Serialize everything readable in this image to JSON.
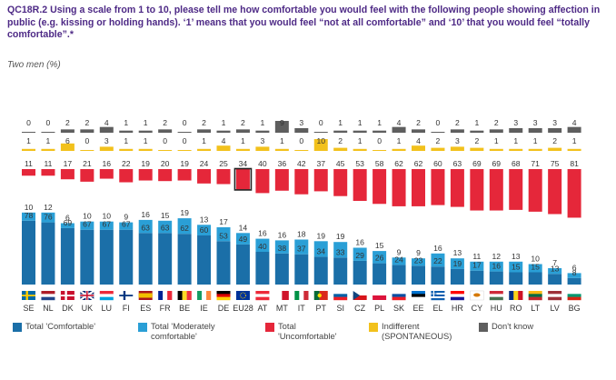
{
  "question": "QC18R.2 Using a scale from 1 to 10, please tell me how comfortable you would feel with the following people showing affection in public (e.g. kissing or holding hands). ‘1’ means that you would feel “not at all comfortable” and ‘10’ that you would feel “totally comfortable”.*",
  "subtitle": "Two men (%)",
  "chart_data": {
    "type": "bar",
    "stacked": true,
    "categories": [
      "SE",
      "NL",
      "DK",
      "UK",
      "LU",
      "FI",
      "ES",
      "FR",
      "BE",
      "IE",
      "DE",
      "EU28",
      "AT",
      "MT",
      "IT",
      "PT",
      "SI",
      "CZ",
      "PL",
      "SK",
      "EE",
      "EL",
      "HR",
      "CY",
      "HU",
      "RO",
      "LT",
      "LV",
      "BG"
    ],
    "highlight": "EU28",
    "series": [
      {
        "name": "Total 'Comfortable'",
        "color": "#1b6fa8",
        "values": [
          78,
          76,
          69,
          67,
          67,
          67,
          63,
          63,
          62,
          60,
          53,
          49,
          40,
          38,
          37,
          34,
          33,
          29,
          26,
          24,
          23,
          22,
          19,
          17,
          16,
          15,
          15,
          13,
          8
        ]
      },
      {
        "name": "Total 'Moderately comfortable'",
        "color": "#2a9fd6",
        "values": [
          10,
          12,
          6,
          10,
          10,
          9,
          16,
          15,
          19,
          13,
          17,
          14,
          16,
          16,
          18,
          19,
          19,
          16,
          15,
          9,
          9,
          16,
          13,
          11,
          12,
          13,
          10,
          7,
          6
        ]
      },
      {
        "name": "Total 'Uncomfortable'",
        "color": "#e5273a",
        "values": [
          11,
          11,
          17,
          21,
          16,
          22,
          19,
          20,
          19,
          24,
          25,
          34,
          40,
          36,
          42,
          37,
          45,
          53,
          58,
          62,
          62,
          60,
          63,
          69,
          69,
          68,
          71,
          75,
          81
        ]
      },
      {
        "name": "Indifferent (SPONTANEOUS)",
        "color": "#f2c11c",
        "values": [
          1,
          1,
          6,
          0,
          3,
          1,
          1,
          0,
          0,
          1,
          4,
          1,
          3,
          1,
          0,
          10,
          2,
          1,
          0,
          1,
          4,
          2,
          3,
          2,
          1,
          1,
          1,
          2,
          1
        ]
      },
      {
        "name": "Don't know",
        "color": "#5e5e5e",
        "values": [
          0,
          0,
          2,
          2,
          4,
          1,
          1,
          2,
          0,
          2,
          1,
          2,
          1,
          9,
          3,
          0,
          1,
          1,
          1,
          4,
          2,
          0,
          2,
          1,
          2,
          3,
          3,
          3,
          4
        ]
      }
    ]
  },
  "legend": [
    {
      "label": "Total 'Comfortable'",
      "color": "#1b6fa8"
    },
    {
      "label": "Total 'Moderately\ncomfortable'",
      "color": "#2a9fd6"
    },
    {
      "label": "Total\n'Uncomfortable'",
      "color": "#e5273a"
    },
    {
      "label": "Indifferent\n(SPONTANEOUS)",
      "color": "#f2c11c"
    },
    {
      "label": "Don't know",
      "color": "#5e5e5e"
    }
  ],
  "flags": {
    "SE": {
      "kind": "nordic",
      "c": [
        "#006aa7",
        "#fecc00"
      ]
    },
    "NL": {
      "kind": "hstripes",
      "c": [
        "#ae1c28",
        "#ffffff",
        "#21468b"
      ]
    },
    "DK": {
      "kind": "nordic",
      "c": [
        "#c8102e",
        "#ffffff"
      ]
    },
    "UK": {
      "kind": "uk",
      "c": [
        "#012169",
        "#ffffff",
        "#c8102e"
      ]
    },
    "LU": {
      "kind": "hstripes",
      "c": [
        "#ed2939",
        "#ffffff",
        "#00a1de"
      ]
    },
    "FI": {
      "kind": "nordic",
      "c": [
        "#ffffff",
        "#003580"
      ]
    },
    "ES": {
      "kind": "spain",
      "c": [
        "#aa151b",
        "#f1bf00"
      ]
    },
    "FR": {
      "kind": "vstripes",
      "c": [
        "#002395",
        "#ffffff",
        "#ed2939"
      ]
    },
    "BE": {
      "kind": "vstripes",
      "c": [
        "#000000",
        "#fdda24",
        "#ef3340"
      ]
    },
    "IE": {
      "kind": "vstripes",
      "c": [
        "#169b62",
        "#ffffff",
        "#ff883e"
      ]
    },
    "DE": {
      "kind": "hstripes",
      "c": [
        "#000000",
        "#dd0000",
        "#ffce00"
      ]
    },
    "EU28": {
      "kind": "eu",
      "c": [
        "#003399",
        "#ffcc00"
      ]
    },
    "AT": {
      "kind": "hstripes",
      "c": [
        "#ed2939",
        "#ffffff",
        "#ed2939"
      ]
    },
    "MT": {
      "kind": "vstripes2",
      "c": [
        "#ffffff",
        "#cf142b"
      ]
    },
    "IT": {
      "kind": "vstripes",
      "c": [
        "#009246",
        "#ffffff",
        "#ce2b37"
      ]
    },
    "PT": {
      "kind": "portugal",
      "c": [
        "#046a38",
        "#da291c"
      ]
    },
    "SI": {
      "kind": "hstripes",
      "c": [
        "#ffffff",
        "#005da4",
        "#ed1c24"
      ]
    },
    "CZ": {
      "kind": "czech",
      "c": [
        "#ffffff",
        "#d7141a",
        "#11457e"
      ]
    },
    "PL": {
      "kind": "hstripes2",
      "c": [
        "#ffffff",
        "#dc143c"
      ]
    },
    "SK": {
      "kind": "hstripes",
      "c": [
        "#ffffff",
        "#0b4ea2",
        "#ee1c25"
      ]
    },
    "EE": {
      "kind": "hstripes",
      "c": [
        "#0072ce",
        "#000000",
        "#ffffff"
      ]
    },
    "EL": {
      "kind": "greece",
      "c": [
        "#0d5eaf",
        "#ffffff"
      ]
    },
    "HR": {
      "kind": "hstripes",
      "c": [
        "#ff0000",
        "#ffffff",
        "#171796"
      ]
    },
    "CY": {
      "kind": "cyprus",
      "c": [
        "#ffffff",
        "#d57800"
      ]
    },
    "HU": {
      "kind": "hstripes",
      "c": [
        "#ce2939",
        "#ffffff",
        "#477050"
      ]
    },
    "RO": {
      "kind": "vstripes",
      "c": [
        "#002b7f",
        "#fcd116",
        "#ce1126"
      ]
    },
    "LT": {
      "kind": "hstripes",
      "c": [
        "#fdb913",
        "#006a44",
        "#c1272d"
      ]
    },
    "LV": {
      "kind": "hstripes",
      "c": [
        "#9e3039",
        "#ffffff",
        "#9e3039"
      ]
    },
    "BG": {
      "kind": "hstripes",
      "c": [
        "#ffffff",
        "#00966e",
        "#d62612"
      ]
    }
  }
}
